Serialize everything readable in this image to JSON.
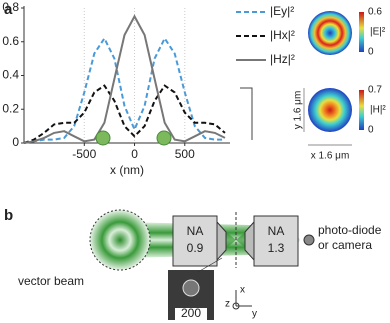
{
  "panel_labels": [
    "a",
    "b"
  ],
  "chart_data": {
    "type": "line",
    "xlabel": "x (nm)",
    "x": [
      -1100,
      -1000,
      -900,
      -800,
      -700,
      -600,
      -500,
      -400,
      -300,
      -200,
      -100,
      0,
      100,
      200,
      300,
      400,
      500,
      600,
      700,
      800,
      900
    ],
    "series": [
      {
        "name": "|Ey|²",
        "color": "#4a9ad8",
        "dash": true,
        "values": [
          0.0,
          0.01,
          0.02,
          0.02,
          0.03,
          0.1,
          0.3,
          0.53,
          0.62,
          0.5,
          0.22,
          0.08,
          0.22,
          0.5,
          0.62,
          0.53,
          0.3,
          0.1,
          0.03,
          0.02,
          0.02
        ]
      },
      {
        "name": "|Hx|²",
        "color": "#111111",
        "dash": true,
        "values": [
          0.0,
          0.02,
          0.06,
          0.11,
          0.12,
          0.12,
          0.18,
          0.3,
          0.34,
          0.25,
          0.1,
          0.04,
          0.1,
          0.25,
          0.34,
          0.3,
          0.18,
          0.12,
          0.12,
          0.11,
          0.06
        ]
      },
      {
        "name": "|Hz|²",
        "color": "#777777",
        "dash": false,
        "values": [
          0.0,
          0.01,
          0.03,
          0.06,
          0.07,
          0.04,
          0.01,
          0.02,
          0.12,
          0.38,
          0.64,
          0.75,
          0.64,
          0.38,
          0.12,
          0.02,
          0.01,
          0.04,
          0.07,
          0.06,
          0.03
        ]
      }
    ],
    "xlim": [
      -1100,
      950
    ],
    "ylim": [
      0,
      0.8
    ],
    "xticks": [
      {
        "value": -500,
        "label": "-500"
      },
      0,
      500
    ],
    "yticks": [
      0,
      0.2,
      0.4,
      0.6,
      0.8
    ]
  },
  "maps": [
    {
      "quantity": "|E|²",
      "max_label": "0.6",
      "min_label": "0"
    },
    {
      "quantity": "|H|²",
      "max_label": "0.7",
      "min_label": "0"
    }
  ],
  "map_scale": {
    "y": "y 1.6 μm",
    "x": "x 1.6 μm"
  },
  "diagram": {
    "lens1": {
      "top": "NA",
      "bottom": "0.9"
    },
    "lens2": {
      "top": "NA",
      "bottom": "1.3"
    },
    "detector": [
      "photo-diode",
      "or camera"
    ],
    "source": "vector beam",
    "scale_bar": "200",
    "axes": [
      "x",
      "z",
      "y"
    ]
  }
}
